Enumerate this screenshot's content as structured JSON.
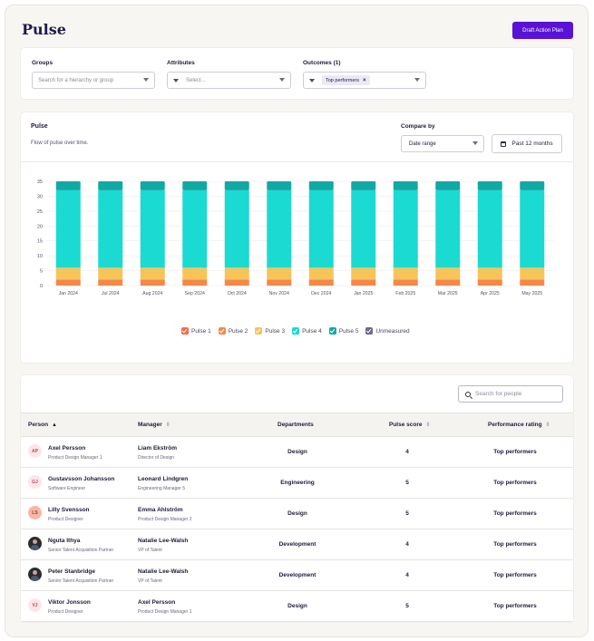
{
  "header": {
    "title": "Pulse",
    "action_label": "Draft Action Plan"
  },
  "filters": {
    "groups": {
      "label": "Groups",
      "placeholder": "Search for a hierarchy or group"
    },
    "attributes": {
      "label": "Attributes",
      "placeholder": "Select..."
    },
    "outcomes": {
      "label": "Outcomes (1)",
      "chip": "Top performers"
    }
  },
  "pulse_section": {
    "title": "Pulse",
    "subtitle": "Flow of pulse over time.",
    "compare_label": "Compare by",
    "compare_value": "Date range",
    "range_value": "Past 12 months"
  },
  "chart_data": {
    "type": "bar",
    "stacked": true,
    "categories": [
      "Jan 2024",
      "Jul 2024",
      "Aug 2024",
      "Sep 2024",
      "Oct 2024",
      "Nov 2024",
      "Dec 2024",
      "Jan 2025",
      "Feb 2025",
      "Mar 2025",
      "Apr 2025",
      "May 2025"
    ],
    "y_ticks": [
      0,
      5,
      10,
      15,
      20,
      25,
      30,
      35
    ],
    "ylim": [
      0,
      35
    ],
    "grid": true,
    "legend_position": "bottom",
    "series": [
      {
        "name": "Pulse 1",
        "color": "#f26b4a",
        "values": [
          0,
          0,
          0,
          0,
          0,
          0,
          0,
          0,
          0,
          0,
          0,
          0
        ]
      },
      {
        "name": "Pulse 2",
        "color": "#f5874a",
        "values": [
          2,
          2,
          2,
          2,
          2,
          2,
          2,
          2,
          2,
          2,
          2,
          2
        ]
      },
      {
        "name": "Pulse 3",
        "color": "#f7c45a",
        "values": [
          4,
          4,
          4,
          4,
          4,
          4,
          4,
          4,
          4,
          4,
          4,
          4
        ]
      },
      {
        "name": "Pulse 4",
        "color": "#1adad2",
        "values": [
          26,
          26,
          26,
          26,
          26,
          26,
          26,
          26,
          26,
          26,
          26,
          26
        ]
      },
      {
        "name": "Pulse 5",
        "color": "#12a9a4",
        "values": [
          3,
          3,
          3,
          3,
          3,
          3,
          3,
          3,
          3,
          3,
          3,
          3
        ]
      },
      {
        "name": "Unmeasured",
        "color": "#6c6a84",
        "values": [
          0,
          0,
          0,
          0,
          0,
          0,
          0,
          0,
          0,
          0,
          0,
          0
        ]
      }
    ]
  },
  "table": {
    "search_placeholder": "Search for people",
    "columns": {
      "person": "Person",
      "manager": "Manager",
      "departments": "Departments",
      "pulse_score": "Pulse score",
      "performance": "Performance rating"
    },
    "rows": [
      {
        "initials": "AP",
        "avatar_color": "#fde6ea",
        "avatar_text": "#c2455c",
        "photo": false,
        "name": "Axel Persson",
        "role": "Product Design Manager 1",
        "manager": "Liam Ekström",
        "manager_role": "Director of Design",
        "department": "Design",
        "score": "4",
        "rating": "Top performers"
      },
      {
        "initials": "GJ",
        "avatar_color": "#fde6ea",
        "avatar_text": "#c2455c",
        "photo": false,
        "name": "Gustavsson Johansson",
        "role": "Software Engineer",
        "manager": "Leonard Lindgren",
        "manager_role": "Engineering Manager 5",
        "department": "Engineering",
        "score": "5",
        "rating": "Top performers"
      },
      {
        "initials": "LS",
        "avatar_color": "#f8b7a6",
        "avatar_text": "#a13a25",
        "photo": false,
        "name": "Lilly Svensson",
        "role": "Product Designer",
        "manager": "Emma Ahlström",
        "manager_role": "Product Design Manager 2",
        "department": "Design",
        "score": "5",
        "rating": "Top performers"
      },
      {
        "initials": "",
        "avatar_color": "#2b2b33",
        "avatar_text": "#ffffff",
        "photo": true,
        "name": "Nguta Ithya",
        "role": "Senior Talent Acquisition Partner",
        "manager": "Natalie Lee-Walsh",
        "manager_role": "VP of Talent",
        "department": "Development",
        "score": "4",
        "rating": "Top performers"
      },
      {
        "initials": "",
        "avatar_color": "#2b2b33",
        "avatar_text": "#ffffff",
        "photo": true,
        "name": "Peter Stanbridge",
        "role": "Senior Talent Acquisition Partner",
        "manager": "Natalie Lee-Walsh",
        "manager_role": "VP of Talent",
        "department": "Development",
        "score": "4",
        "rating": "Top performers"
      },
      {
        "initials": "VJ",
        "avatar_color": "#fde6ea",
        "avatar_text": "#c2455c",
        "photo": false,
        "name": "Viktor Jonsson",
        "role": "Product Designer",
        "manager": "Axel Persson",
        "manager_role": "Product Design Manager 1",
        "department": "Design",
        "score": "5",
        "rating": "Top performers"
      }
    ]
  }
}
